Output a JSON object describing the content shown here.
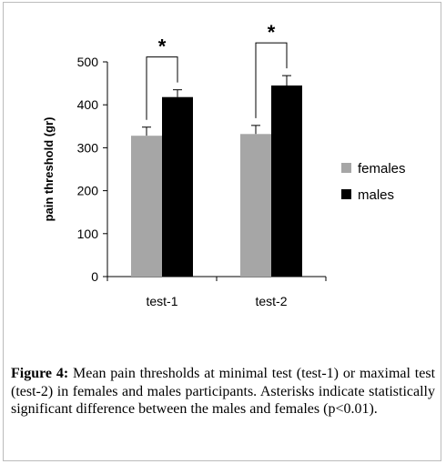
{
  "chart_data": {
    "type": "bar",
    "categories": [
      "test-1",
      "test-2"
    ],
    "series": [
      {
        "name": "females",
        "values": [
          328,
          332
        ],
        "errors": [
          20,
          20
        ],
        "color": "#a6a6a6"
      },
      {
        "name": "males",
        "values": [
          418,
          445
        ],
        "errors": [
          17,
          23
        ],
        "color": "#000000"
      }
    ],
    "ylabel": "pain threshold (gr)",
    "xlabel": "",
    "ylim": [
      0,
      500
    ],
    "yticks": [
      0,
      100,
      200,
      300,
      400,
      500
    ],
    "grid": false,
    "legend_position": "right",
    "annotations": [
      {
        "text": "*",
        "category": "test-1",
        "meaning": "significant"
      },
      {
        "text": "*",
        "category": "test-2",
        "meaning": "significant"
      }
    ]
  },
  "caption": {
    "label": "Figure 4:",
    "text": "Mean pain thresholds at minimal test (test-1) or maximal test (test-2) in females and males participants. Asterisks indicate statistically significant difference between the males and females (p<0.01)."
  }
}
